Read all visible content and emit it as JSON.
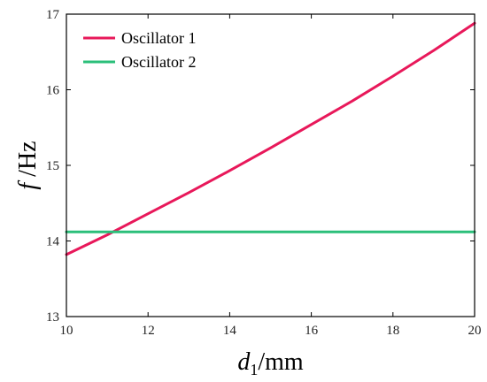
{
  "chart_data": {
    "type": "line",
    "xlabel": {
      "var": "d",
      "sub": "1",
      "unit": "/mm"
    },
    "ylabel": {
      "var": "f",
      "unit": " /Hz"
    },
    "xlim": [
      10,
      20
    ],
    "ylim": [
      13,
      17
    ],
    "xticks": [
      "10",
      "12",
      "14",
      "16",
      "18",
      "20"
    ],
    "yticks": [
      "13",
      "14",
      "15",
      "16",
      "17"
    ],
    "grid": false,
    "legend_position": "top-left",
    "series": [
      {
        "name": "Oscillator 1",
        "color": "#e8185a",
        "x": [
          10,
          11,
          12,
          13,
          14,
          15,
          16,
          17,
          18,
          19,
          20
        ],
        "y": [
          13.82,
          14.08,
          14.36,
          14.64,
          14.93,
          15.23,
          15.54,
          15.85,
          16.18,
          16.52,
          16.88
        ]
      },
      {
        "name": "Oscillator 2",
        "color": "#2bbf7a",
        "x": [
          10,
          20
        ],
        "y": [
          14.12,
          14.12
        ]
      }
    ]
  }
}
